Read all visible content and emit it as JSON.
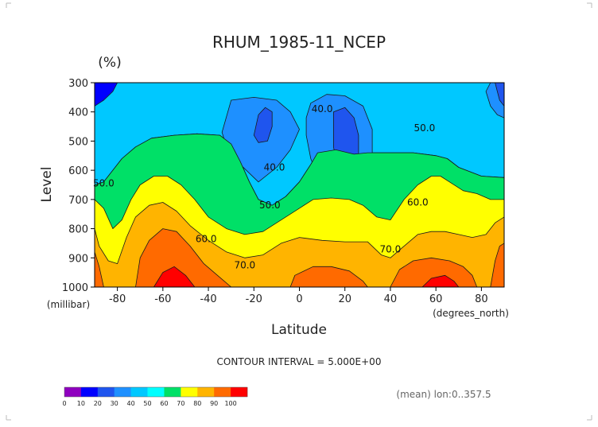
{
  "chart_data": {
    "type": "heatmap",
    "title": "RHUM_1985-11_NCEP",
    "units": "(%)",
    "ylabel": "Level",
    "y_units": "(millibar)",
    "xlabel": "Latitude",
    "x_units": "(degrees_north)",
    "x_ticks": [
      "-80",
      "-60",
      "-40",
      "-20",
      "0",
      "20",
      "40",
      "60",
      "80"
    ],
    "x_tick_values": [
      -80,
      -60,
      -40,
      -20,
      0,
      20,
      40,
      60,
      80
    ],
    "y_ticks": [
      "300",
      "400",
      "500",
      "600",
      "700",
      "800",
      "900",
      "1000"
    ],
    "y_tick_values": [
      300,
      400,
      500,
      600,
      700,
      800,
      900,
      1000
    ],
    "xlim": [
      -90,
      90
    ],
    "ylim": [
      1000,
      300
    ],
    "contour_interval_text": "CONTOUR INTERVAL = 5.000E+00",
    "mean_note": "(mean) lon:0..357.5",
    "contour_labels": [
      {
        "text": "40.0",
        "x": 10,
        "y": 390
      },
      {
        "text": "50.0",
        "x": 55,
        "y": 455
      },
      {
        "text": "40.0",
        "x": -11,
        "y": 590
      },
      {
        "text": "50.0",
        "x": -86,
        "y": 645
      },
      {
        "text": "50.0",
        "x": -13,
        "y": 720
      },
      {
        "text": "60.0",
        "x": 52,
        "y": 710
      },
      {
        "text": "60.0",
        "x": -41,
        "y": 835
      },
      {
        "text": "70.0",
        "x": 40,
        "y": 870
      },
      {
        "text": "70.0",
        "x": -24,
        "y": 925
      }
    ],
    "colorbar": {
      "labels": [
        "0",
        "10",
        "20",
        "30",
        "40",
        "50",
        "60",
        "70",
        "80",
        "90",
        "100"
      ],
      "colors": [
        "#8f00bf",
        "#0000ff",
        "#1f55ee",
        "#1e90ff",
        "#00c8ff",
        "#00ffff",
        "#00e067",
        "#ffff00",
        "#ffb400",
        "#ff6a00",
        "#ff0000"
      ]
    },
    "bands": [
      {
        "level": 30,
        "color": "#1f55ee",
        "points": [
          [
            -90,
            300
          ],
          [
            -90,
            430
          ],
          [
            -85,
            410
          ],
          [
            -80,
            380
          ],
          [
            -75,
            310
          ],
          [
            -70,
            300
          ]
        ]
      },
      {
        "level": 35,
        "color": "#1e90ff",
        "points": [
          [
            -90,
            300
          ],
          [
            -90,
            540
          ],
          [
            -86,
            520
          ],
          [
            -80,
            470
          ],
          [
            -75,
            430
          ],
          [
            -70,
            400
          ],
          [
            -60,
            350
          ],
          [
            -55,
            300
          ]
        ]
      },
      {
        "level": 40,
        "color": "#00c8ff",
        "points": [
          [
            -90,
            300
          ],
          [
            -90,
            650
          ],
          [
            -86,
            640
          ],
          [
            -82,
            600
          ],
          [
            -78,
            560
          ],
          [
            -72,
            520
          ],
          [
            -65,
            490
          ],
          [
            -55,
            480
          ],
          [
            -45,
            475
          ],
          [
            -35,
            480
          ],
          [
            -30,
            510
          ],
          [
            -26,
            570
          ],
          [
            -22,
            640
          ],
          [
            -18,
            700
          ],
          [
            -12,
            720
          ],
          [
            -6,
            690
          ],
          [
            0,
            640
          ],
          [
            5,
            580
          ],
          [
            8,
            540
          ],
          [
            16,
            530
          ],
          [
            24,
            545
          ],
          [
            30,
            540
          ],
          [
            40,
            540
          ],
          [
            50,
            540
          ],
          [
            60,
            550
          ],
          [
            65,
            560
          ],
          [
            70,
            590
          ],
          [
            80,
            620
          ],
          [
            90,
            625
          ],
          [
            90,
            300
          ]
        ]
      },
      {
        "level": 45,
        "color": "#1e90ff",
        "points": [
          [
            -30,
            360
          ],
          [
            -20,
            350
          ],
          [
            -10,
            360
          ],
          [
            -4,
            400
          ],
          [
            0,
            460
          ],
          [
            -4,
            530
          ],
          [
            -10,
            590
          ],
          [
            -18,
            640
          ],
          [
            -26,
            580
          ],
          [
            -32,
            520
          ],
          [
            -34,
            470
          ]
        ]
      },
      {
        "level": 45,
        "color": "#1e90ff",
        "points": [
          [
            5,
            370
          ],
          [
            12,
            340
          ],
          [
            20,
            345
          ],
          [
            28,
            380
          ],
          [
            32,
            460
          ],
          [
            32,
            560
          ],
          [
            30,
            640
          ],
          [
            24,
            690
          ],
          [
            16,
            690
          ],
          [
            9,
            640
          ],
          [
            5,
            560
          ],
          [
            3,
            480
          ],
          [
            3,
            420
          ]
        ]
      },
      {
        "level": 30,
        "color": "#1f55ee",
        "points": [
          [
            -18,
            410
          ],
          [
            -15,
            385
          ],
          [
            -12,
            400
          ],
          [
            -12,
            450
          ],
          [
            -14,
            500
          ],
          [
            -18,
            505
          ],
          [
            -20,
            480
          ]
        ]
      },
      {
        "level": 30,
        "color": "#1f55ee",
        "points": [
          [
            15,
            400
          ],
          [
            20,
            385
          ],
          [
            24,
            420
          ],
          [
            26,
            480
          ],
          [
            26,
            560
          ],
          [
            24,
            610
          ],
          [
            20,
            620
          ],
          [
            17,
            600
          ],
          [
            15,
            520
          ]
        ]
      },
      {
        "level": 35,
        "color": "#1e90ff",
        "points": [
          [
            84,
            300
          ],
          [
            90,
            300
          ],
          [
            90,
            420
          ],
          [
            87,
            410
          ],
          [
            84,
            380
          ],
          [
            82,
            330
          ]
        ]
      },
      {
        "level": 30,
        "color": "#1f55ee",
        "points": [
          [
            86,
            300
          ],
          [
            90,
            300
          ],
          [
            90,
            380
          ],
          [
            88,
            360
          ],
          [
            87,
            330
          ]
        ]
      },
      {
        "level": 25,
        "color": "#0000ff",
        "points": [
          [
            -90,
            300
          ],
          [
            -90,
            380
          ],
          [
            -86,
            360
          ],
          [
            -82,
            330
          ],
          [
            -80,
            300
          ]
        ]
      },
      {
        "level": 50,
        "color": "#00e067",
        "points": [
          [
            -90,
            900
          ],
          [
            -90,
            650
          ],
          [
            -86,
            640
          ],
          [
            -82,
            600
          ],
          [
            -78,
            560
          ],
          [
            -72,
            520
          ],
          [
            -65,
            490
          ],
          [
            -55,
            480
          ],
          [
            -45,
            475
          ],
          [
            -35,
            480
          ],
          [
            -30,
            510
          ],
          [
            -26,
            570
          ],
          [
            -22,
            640
          ],
          [
            -18,
            700
          ],
          [
            -12,
            720
          ],
          [
            -6,
            690
          ],
          [
            0,
            640
          ],
          [
            5,
            580
          ],
          [
            8,
            540
          ],
          [
            16,
            530
          ],
          [
            24,
            545
          ],
          [
            30,
            540
          ],
          [
            40,
            540
          ],
          [
            50,
            540
          ],
          [
            60,
            550
          ],
          [
            65,
            560
          ],
          [
            70,
            590
          ],
          [
            80,
            620
          ],
          [
            90,
            625
          ],
          [
            90,
            900
          ]
        ]
      },
      {
        "level": 60,
        "color": "#ffff00",
        "points": [
          [
            -90,
            1000
          ],
          [
            -90,
            700
          ],
          [
            -86,
            730
          ],
          [
            -82,
            800
          ],
          [
            -78,
            770
          ],
          [
            -74,
            700
          ],
          [
            -70,
            650
          ],
          [
            -64,
            620
          ],
          [
            -58,
            620
          ],
          [
            -52,
            650
          ],
          [
            -46,
            700
          ],
          [
            -40,
            760
          ],
          [
            -32,
            800
          ],
          [
            -24,
            820
          ],
          [
            -16,
            810
          ],
          [
            -8,
            770
          ],
          [
            0,
            730
          ],
          [
            6,
            700
          ],
          [
            14,
            695
          ],
          [
            22,
            700
          ],
          [
            28,
            720
          ],
          [
            34,
            760
          ],
          [
            40,
            770
          ],
          [
            46,
            700
          ],
          [
            52,
            650
          ],
          [
            58,
            620
          ],
          [
            62,
            620
          ],
          [
            66,
            640
          ],
          [
            72,
            670
          ],
          [
            78,
            680
          ],
          [
            84,
            700
          ],
          [
            90,
            700
          ],
          [
            90,
            1000
          ]
        ]
      },
      {
        "level": 70,
        "color": "#ffb400",
        "points": [
          [
            -90,
            1000
          ],
          [
            -90,
            800
          ],
          [
            -88,
            860
          ],
          [
            -84,
            910
          ],
          [
            -80,
            920
          ],
          [
            -76,
            830
          ],
          [
            -72,
            760
          ],
          [
            -66,
            720
          ],
          [
            -60,
            710
          ],
          [
            -54,
            740
          ],
          [
            -48,
            790
          ],
          [
            -40,
            840
          ],
          [
            -32,
            880
          ],
          [
            -24,
            900
          ],
          [
            -16,
            890
          ],
          [
            -8,
            850
          ],
          [
            0,
            830
          ],
          [
            10,
            840
          ],
          [
            20,
            845
          ],
          [
            30,
            845
          ],
          [
            36,
            890
          ],
          [
            40,
            900
          ],
          [
            46,
            860
          ],
          [
            52,
            820
          ],
          [
            58,
            810
          ],
          [
            64,
            810
          ],
          [
            70,
            820
          ],
          [
            76,
            830
          ],
          [
            82,
            820
          ],
          [
            86,
            780
          ],
          [
            90,
            760
          ],
          [
            90,
            1000
          ]
        ]
      },
      {
        "level": 80,
        "color": "#ff6a00",
        "points": [
          [
            -90,
            1000
          ],
          [
            -90,
            880
          ],
          [
            -88,
            930
          ],
          [
            -86,
            1000
          ]
        ]
      },
      {
        "level": 80,
        "color": "#ff6a00",
        "points": [
          [
            -72,
            1000
          ],
          [
            -70,
            900
          ],
          [
            -66,
            840
          ],
          [
            -60,
            800
          ],
          [
            -54,
            810
          ],
          [
            -48,
            860
          ],
          [
            -42,
            920
          ],
          [
            -36,
            960
          ],
          [
            -30,
            1000
          ]
        ]
      },
      {
        "level": 80,
        "color": "#ff6a00",
        "points": [
          [
            -4,
            1000
          ],
          [
            -2,
            960
          ],
          [
            6,
            930
          ],
          [
            14,
            930
          ],
          [
            22,
            945
          ],
          [
            28,
            980
          ],
          [
            30,
            1000
          ]
        ]
      },
      {
        "level": 80,
        "color": "#ff6a00",
        "points": [
          [
            40,
            1000
          ],
          [
            44,
            940
          ],
          [
            50,
            910
          ],
          [
            58,
            900
          ],
          [
            66,
            910
          ],
          [
            72,
            930
          ],
          [
            76,
            960
          ],
          [
            78,
            1000
          ]
        ]
      },
      {
        "level": 80,
        "color": "#ff6a00",
        "points": [
          [
            84,
            1000
          ],
          [
            86,
            910
          ],
          [
            88,
            860
          ],
          [
            90,
            850
          ],
          [
            90,
            1000
          ]
        ]
      },
      {
        "level": 90,
        "color": "#ff0000",
        "points": [
          [
            -64,
            1000
          ],
          [
            -60,
            950
          ],
          [
            -55,
            930
          ],
          [
            -50,
            960
          ],
          [
            -46,
            1000
          ]
        ]
      },
      {
        "level": 90,
        "color": "#ff0000",
        "points": [
          [
            54,
            1000
          ],
          [
            58,
            970
          ],
          [
            64,
            960
          ],
          [
            68,
            980
          ],
          [
            70,
            1000
          ]
        ]
      }
    ]
  }
}
